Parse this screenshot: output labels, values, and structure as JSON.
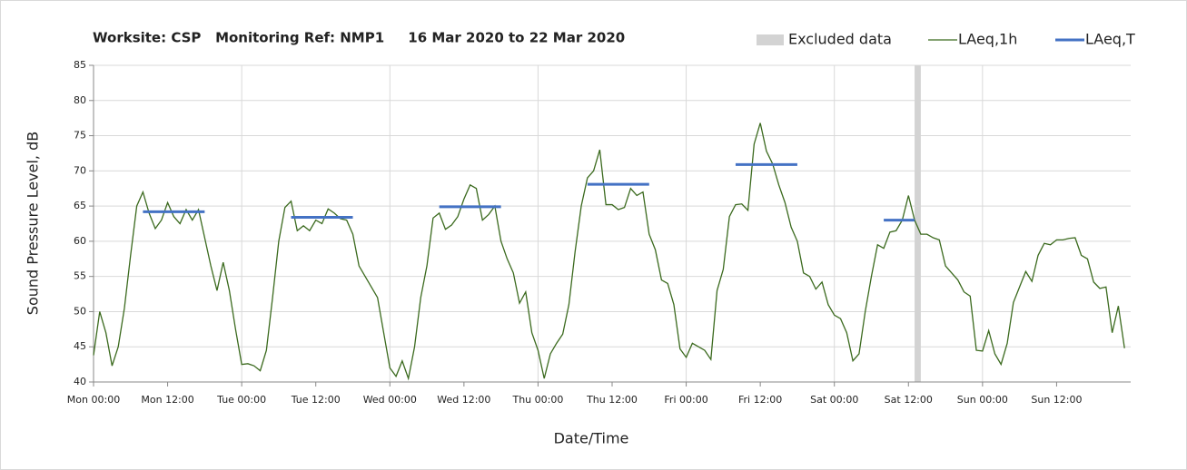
{
  "chart_data": {
    "type": "line",
    "title": "Worksite: CSP   Monitoring Ref: NMP1     16 Mar 2020 to 22 Mar 2020",
    "x_label": "Date/Time",
    "y_label": "Sound Pressure Level, dB",
    "xlim": [
      0,
      168
    ],
    "ylim": [
      40,
      85
    ],
    "yticks": [
      40,
      45,
      50,
      55,
      60,
      65,
      70,
      75,
      80,
      85
    ],
    "xticks": [
      {
        "value": 0,
        "label": "Mon 00:00"
      },
      {
        "value": 12,
        "label": "Mon 12:00"
      },
      {
        "value": 24,
        "label": "Tue 00:00"
      },
      {
        "value": 36,
        "label": "Tue 12:00"
      },
      {
        "value": 48,
        "label": "Wed 00:00"
      },
      {
        "value": 60,
        "label": "Wed 12:00"
      },
      {
        "value": 72,
        "label": "Thu 00:00"
      },
      {
        "value": 84,
        "label": "Thu 12:00"
      },
      {
        "value": 96,
        "label": "Fri 00:00"
      },
      {
        "value": 108,
        "label": "Fri 12:00"
      },
      {
        "value": 120,
        "label": "Sat 00:00"
      },
      {
        "value": 132,
        "label": "Sat 12:00"
      },
      {
        "value": 144,
        "label": "Sun 00:00"
      },
      {
        "value": 156,
        "label": "Sun 12:00"
      }
    ],
    "grid": true,
    "legend": "top-right",
    "excluded": {
      "name": "Excluded data",
      "color": "#d3d3d3",
      "x": [
        133,
        134
      ]
    },
    "series": [
      {
        "name": "LAeq,1h",
        "color": "#3b6a1e",
        "x": [
          0,
          1,
          2,
          3,
          4,
          5,
          6,
          7,
          8,
          9,
          10,
          11,
          12,
          13,
          14,
          15,
          16,
          17,
          18,
          19,
          20,
          21,
          22,
          23,
          24,
          25,
          26,
          27,
          28,
          29,
          30,
          31,
          32,
          33,
          34,
          35,
          36,
          37,
          38,
          39,
          40,
          41,
          42,
          43,
          44,
          45,
          46,
          47,
          48,
          49,
          50,
          51,
          52,
          53,
          54,
          55,
          56,
          57,
          58,
          59,
          60,
          61,
          62,
          63,
          64,
          65,
          66,
          67,
          68,
          69,
          70,
          71,
          72,
          73,
          74,
          75,
          76,
          77,
          78,
          79,
          80,
          81,
          82,
          83,
          84,
          85,
          86,
          87,
          88,
          89,
          90,
          91,
          92,
          93,
          94,
          95,
          96,
          97,
          98,
          99,
          100,
          101,
          102,
          103,
          104,
          105,
          106,
          107,
          108,
          109,
          110,
          111,
          112,
          113,
          114,
          115,
          116,
          117,
          118,
          119,
          120,
          121,
          122,
          123,
          124,
          125,
          126,
          127,
          128,
          129,
          130,
          131,
          132,
          133,
          134,
          135,
          136,
          137,
          138,
          139,
          140,
          141,
          142,
          143,
          144,
          145,
          146,
          147,
          148,
          149,
          150,
          151,
          152,
          153,
          154,
          155,
          156,
          157,
          158,
          159,
          160,
          161,
          162,
          163,
          164,
          165,
          166,
          167
        ],
        "values": [
          43.8,
          50,
          47,
          42.3,
          45,
          50.5,
          58,
          65,
          67,
          64,
          61.8,
          63,
          65.5,
          63.5,
          62.5,
          64.5,
          63,
          64.5,
          60.5,
          56.5,
          53,
          57,
          53,
          47.5,
          42.5,
          42.6,
          42.3,
          41.6,
          44.5,
          52,
          60,
          64.8,
          65.7,
          61.5,
          62.2,
          61.5,
          63,
          62.5,
          64.6,
          64,
          63.2,
          63,
          61,
          56.5,
          55,
          53.5,
          52,
          47,
          42,
          40.8,
          43,
          40.5,
          45,
          52,
          56.5,
          63.3,
          64,
          61.7,
          62.3,
          63.5,
          66,
          68,
          67.5,
          63,
          63.8,
          65,
          60,
          57.5,
          55.5,
          51.2,
          52.8,
          47,
          44.5,
          40.5,
          44,
          45.5,
          46.8,
          51,
          58.5,
          65,
          69,
          70,
          73,
          65.2,
          65.2,
          64.5,
          64.8,
          67.5,
          66.5,
          67,
          61,
          58.8,
          54.5,
          54,
          51,
          44.7,
          43.5,
          45.5,
          45,
          44.5,
          43.2,
          53,
          56,
          63.5,
          65.2,
          65.3,
          64.4,
          73.8,
          76.8,
          72.8,
          71,
          68,
          65.5,
          62,
          60,
          55.5,
          55,
          53.2,
          54.2,
          51,
          49.5,
          49,
          47,
          43,
          44,
          50,
          55,
          59.5,
          59,
          61.3,
          61.5,
          63,
          66.5,
          63,
          61,
          61,
          60.5,
          60.2,
          56.5,
          55.5,
          54.5,
          52.8,
          52.2,
          44.5,
          44.4,
          47.3,
          44,
          42.5,
          45.5,
          51.3,
          53.5,
          55.7,
          54.3,
          58,
          59.7,
          59.5,
          60.2,
          60.2,
          60.4,
          60.5,
          58,
          57.5,
          54.2,
          53.3,
          53.5,
          47,
          50.8,
          44.8
        ]
      },
      {
        "name": "LAeq,T",
        "color": "#4472c4",
        "kind": "segments",
        "segments": [
          {
            "x": [
              8,
              18
            ],
            "value": 64.2
          },
          {
            "x": [
              32,
              42
            ],
            "value": 63.4
          },
          {
            "x": [
              56,
              66
            ],
            "value": 64.9
          },
          {
            "x": [
              80,
              90
            ],
            "value": 68.1
          },
          {
            "x": [
              104,
              114
            ],
            "value": 70.9
          },
          {
            "x": [
              128,
              133
            ],
            "value": 63.0
          }
        ]
      }
    ]
  }
}
